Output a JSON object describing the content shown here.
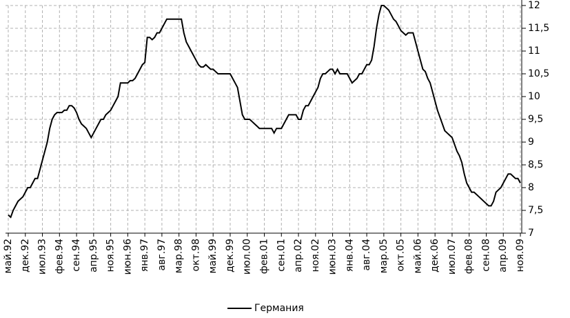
{
  "chart_data": {
    "type": "line",
    "categories": [
      "май.92",
      null,
      null,
      null,
      null,
      null,
      null,
      "дек.92",
      null,
      null,
      null,
      null,
      null,
      null,
      "июл.93",
      null,
      null,
      null,
      null,
      null,
      null,
      "фев.94",
      null,
      null,
      null,
      null,
      null,
      null,
      "сен.94",
      null,
      null,
      null,
      null,
      null,
      null,
      "апр.95",
      null,
      null,
      null,
      null,
      null,
      null,
      "ноя.95",
      null,
      null,
      null,
      null,
      null,
      null,
      "июн.96",
      null,
      null,
      null,
      null,
      null,
      null,
      "янв.97",
      null,
      null,
      null,
      null,
      null,
      null,
      "авг.97",
      null,
      null,
      null,
      null,
      null,
      null,
      "мар.98",
      null,
      null,
      null,
      null,
      null,
      null,
      "окт.98",
      null,
      null,
      null,
      null,
      null,
      null,
      "май.99",
      null,
      null,
      null,
      null,
      null,
      null,
      "дек.99",
      null,
      null,
      null,
      null,
      null,
      null,
      "июл.00",
      null,
      null,
      null,
      null,
      null,
      null,
      "фев.01",
      null,
      null,
      null,
      null,
      null,
      null,
      "сен.01",
      null,
      null,
      null,
      null,
      null,
      null,
      "апр.02",
      null,
      null,
      null,
      null,
      null,
      null,
      "ноя.02",
      null,
      null,
      null,
      null,
      null,
      null,
      "июн.03",
      null,
      null,
      null,
      null,
      null,
      null,
      "янв.04",
      null,
      null,
      null,
      null,
      null,
      null,
      "авг.04",
      null,
      null,
      null,
      null,
      null,
      null,
      "мар.05",
      null,
      null,
      null,
      null,
      null,
      null,
      "окт.05",
      null,
      null,
      null,
      null,
      null,
      null,
      "май.06",
      null,
      null,
      null,
      null,
      null,
      null,
      "дек.06",
      null,
      null,
      null,
      null,
      null,
      null,
      "июл.07",
      null,
      null,
      null,
      null,
      null,
      null,
      "фев.08",
      null,
      null,
      null,
      null,
      null,
      null,
      "сен.08",
      null,
      null,
      null,
      null,
      null,
      null,
      "апр.09",
      null,
      null,
      null,
      null,
      null,
      null,
      "ноя.09"
    ],
    "series": [
      {
        "name": "Германия",
        "color": "#000000",
        "values": [
          7.4,
          7.35,
          7.5,
          7.6,
          7.7,
          7.75,
          7.8,
          7.9,
          8.0,
          8.0,
          8.1,
          8.2,
          8.2,
          8.4,
          8.6,
          8.8,
          9.0,
          9.3,
          9.5,
          9.6,
          9.65,
          9.65,
          9.65,
          9.7,
          9.7,
          9.8,
          9.8,
          9.75,
          9.65,
          9.5,
          9.4,
          9.35,
          9.3,
          9.2,
          9.1,
          9.2,
          9.3,
          9.4,
          9.5,
          9.5,
          9.6,
          9.65,
          9.7,
          9.8,
          9.9,
          10.0,
          10.3,
          10.3,
          10.3,
          10.3,
          10.35,
          10.35,
          10.4,
          10.5,
          10.6,
          10.7,
          10.75,
          11.3,
          11.3,
          11.25,
          11.3,
          11.4,
          11.4,
          11.5,
          11.6,
          11.7,
          11.7,
          11.7,
          11.7,
          11.7,
          11.7,
          11.7,
          11.4,
          11.2,
          11.1,
          11.0,
          10.9,
          10.8,
          10.7,
          10.65,
          10.65,
          10.7,
          10.65,
          10.6,
          10.6,
          10.55,
          10.5,
          10.5,
          10.5,
          10.5,
          10.5,
          10.5,
          10.4,
          10.3,
          10.2,
          9.9,
          9.6,
          9.5,
          9.5,
          9.5,
          9.45,
          9.4,
          9.35,
          9.3,
          9.3,
          9.3,
          9.3,
          9.3,
          9.3,
          9.2,
          9.3,
          9.3,
          9.3,
          9.4,
          9.5,
          9.6,
          9.6,
          9.6,
          9.6,
          9.5,
          9.5,
          9.7,
          9.8,
          9.8,
          9.9,
          10.0,
          10.1,
          10.2,
          10.4,
          10.5,
          10.5,
          10.55,
          10.6,
          10.6,
          10.5,
          10.6,
          10.5,
          10.5,
          10.5,
          10.5,
          10.4,
          10.3,
          10.35,
          10.4,
          10.5,
          10.5,
          10.6,
          10.7,
          10.7,
          10.8,
          11.1,
          11.5,
          11.8,
          12.0,
          12.0,
          11.95,
          11.9,
          11.8,
          11.7,
          11.65,
          11.55,
          11.45,
          11.4,
          11.35,
          11.4,
          11.4,
          11.4,
          11.2,
          11.0,
          10.8,
          10.6,
          10.55,
          10.4,
          10.3,
          10.1,
          9.9,
          9.7,
          9.55,
          9.4,
          9.25,
          9.2,
          9.15,
          9.1,
          8.95,
          8.8,
          8.7,
          8.55,
          8.3,
          8.1,
          8.0,
          7.9,
          7.9,
          7.85,
          7.8,
          7.75,
          7.7,
          7.65,
          7.6,
          7.6,
          7.7,
          7.9,
          7.95,
          8.0,
          8.1,
          8.2,
          8.3,
          8.3,
          8.25,
          8.2,
          8.2,
          8.1
        ]
      }
    ],
    "ylim": [
      7,
      12
    ],
    "yticks": [
      7,
      {
        "value": 7.5,
        "label": "7,5"
      },
      8,
      {
        "value": 8.5,
        "label": "8,5"
      },
      9,
      {
        "value": 9.5,
        "label": "9,5"
      },
      10,
      {
        "value": 10.5,
        "label": "10,5"
      },
      11,
      {
        "value": 11.5,
        "label": "11,5"
      },
      12
    ],
    "y_axis_side": "right",
    "grid": true,
    "legend": "bottom"
  }
}
